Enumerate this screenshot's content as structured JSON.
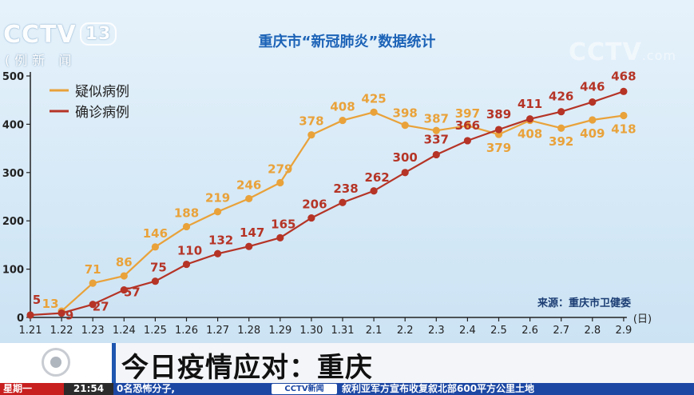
{
  "broadcast": {
    "logo_left": "CCTV",
    "logo_channel": "13",
    "logo_sub": "(例新   闻",
    "logo_right": "CCTV",
    "logo_right_suffix": ".com"
  },
  "banner": {
    "headline": "今日疫情应对：重庆"
  },
  "ticker": {
    "day": "星期一",
    "time": "21:54",
    "left_text": "0名恐怖分子,",
    "logo_text": "CCTV新闻",
    "right_text": "叙利亚军方宣布收复叙北部600平方公里土地"
  },
  "colors": {
    "suspected": "#e9a23a",
    "confirmed": "#b53426",
    "title": "#1c63b7",
    "axis": "#222222"
  },
  "chart_data": {
    "type": "line",
    "title": "重庆市“新冠肺炎”数据统计",
    "source": "来源：重庆市卫健委",
    "xlabel": "(日)",
    "ylabel": "",
    "ylim": [
      0,
      500
    ],
    "yticks": [
      "0",
      "100",
      "200",
      "300",
      "400",
      "500"
    ],
    "categories": [
      "1.21",
      "1.22",
      "1.23",
      "1.24",
      "1.25",
      "1.26",
      "1.27",
      "1.28",
      "1.29",
      "1.30",
      "1.31",
      "2.1",
      "2.2",
      "2.3",
      "2.4",
      "2.5",
      "2.6",
      "2.7",
      "2.8",
      "2.9"
    ],
    "legend_placement": "top-left",
    "grid": false,
    "series": [
      {
        "name": "疑似病例",
        "color": "#e9a23a",
        "values": [
          null,
          13,
          71,
          86,
          146,
          188,
          219,
          246,
          279,
          378,
          408,
          425,
          398,
          387,
          397,
          379,
          408,
          392,
          409,
          418
        ]
      },
      {
        "name": "确诊病例",
        "color": "#b53426",
        "values": [
          5,
          9,
          27,
          57,
          75,
          110,
          132,
          147,
          165,
          206,
          238,
          262,
          300,
          337,
          366,
          389,
          411,
          426,
          446,
          468
        ]
      }
    ]
  }
}
